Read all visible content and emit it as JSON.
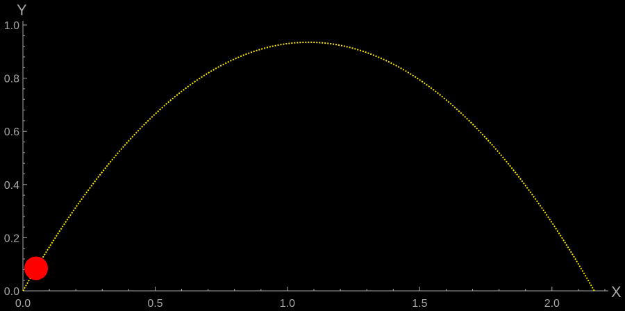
{
  "chart_data": {
    "type": "line",
    "xlabel": "X",
    "ylabel": "Y",
    "xlim": [
      0,
      2.2
    ],
    "ylim": [
      0,
      1.0
    ],
    "x_ticks": [
      "0.0",
      "0.5",
      "1.0",
      "1.5",
      "2.0"
    ],
    "x_tick_values": [
      0,
      0.5,
      1.0,
      1.5,
      2.0
    ],
    "y_ticks": [
      "0.0",
      "0.2",
      "0.4",
      "0.6",
      "0.8",
      "1.0"
    ],
    "y_tick_values": [
      0,
      0.2,
      0.4,
      0.6,
      0.8,
      1.0
    ],
    "grid": false,
    "series": [
      {
        "style": "dotted",
        "color": "#ffea00",
        "x": [
          0.0,
          0.1,
          0.2,
          0.3,
          0.4,
          0.5,
          0.6,
          0.7,
          0.8,
          0.9,
          1.0,
          1.08,
          1.2,
          1.3,
          1.4,
          1.5,
          1.6,
          1.7,
          1.8,
          1.9,
          2.0,
          2.1,
          2.16
        ],
        "y": [
          0.0,
          0.165,
          0.314,
          0.447,
          0.564,
          0.665,
          0.75,
          0.818,
          0.871,
          0.908,
          0.929,
          0.935,
          0.927,
          0.903,
          0.863,
          0.808,
          0.736,
          0.65,
          0.547,
          0.428,
          0.294,
          0.144,
          0.0
        ]
      }
    ],
    "marker": {
      "x": 0.05,
      "y": 0.085,
      "color": "#ff0000"
    },
    "colors": {
      "background": "#000000",
      "axis": "#a6a6a6",
      "curve": "#ffea00",
      "marker": "#ff0000"
    }
  }
}
